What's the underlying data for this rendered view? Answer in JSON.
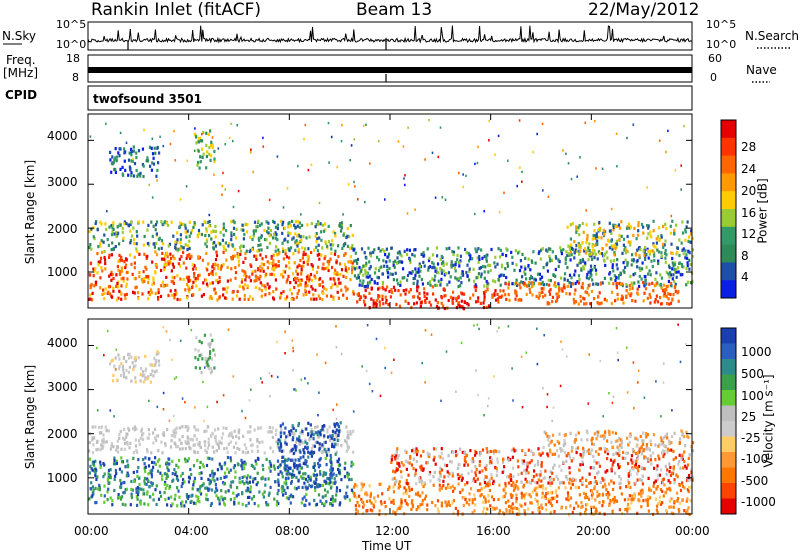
{
  "header": {
    "station": "Rankin Inlet (fitACF)",
    "beam": "Beam 13",
    "date": "22/May/2012"
  },
  "summary": {
    "nsky_label": "N.Sky",
    "nsky_ticks": [
      "10^5",
      "10^0"
    ],
    "nsearch_label": "N.Search",
    "nsearch_ticks": [
      "10^5",
      "10^0"
    ],
    "freq_label": "Freq.",
    "freq_unit": "[MHz]",
    "freq_ticks": [
      "18",
      "8"
    ],
    "nave_label": "Nave",
    "nave_ticks": [
      "60",
      "0"
    ],
    "cpid_label": "CPID",
    "cpid_value": "twofsound 3501"
  },
  "chart_data": [
    {
      "type": "heatmap",
      "parameter": "power",
      "ylabel": "Slant Range [km]",
      "xlabel": "Time UT",
      "x_ticks": [
        "00:00",
        "04:00",
        "08:00",
        "12:00",
        "16:00",
        "20:00",
        "00:00"
      ],
      "x_range_hours": [
        0,
        24
      ],
      "y_ticks": [
        1000,
        2000,
        3000,
        4000
      ],
      "y_range_km": [
        180,
        4600
      ],
      "colorbar_label": "Power [dB]",
      "colorbar_ticks": [
        "28",
        "24",
        "20",
        "16",
        "12",
        "8",
        "4"
      ],
      "colors": [
        "#e60000",
        "#ff3300",
        "#ff6600",
        "#ff9900",
        "#ffcc00",
        "#99cc33",
        "#339966",
        "#2e8b57",
        "#1f4fa8",
        "#0a1fe6"
      ]
    },
    {
      "type": "heatmap",
      "parameter": "velocity",
      "ylabel": "Slant Range [km]",
      "xlabel": "Time UT",
      "x_ticks": [
        "00:00",
        "04:00",
        "08:00",
        "12:00",
        "16:00",
        "20:00",
        "00:00"
      ],
      "x_range_hours": [
        0,
        24
      ],
      "y_ticks": [
        1000,
        2000,
        3000,
        4000
      ],
      "y_range_km": [
        180,
        4600
      ],
      "colorbar_label": "Velocity [m s⁻¹]",
      "colorbar_ticks": [
        "1000",
        "500",
        "100",
        "25",
        "-25",
        "-100",
        "-500",
        "-1000"
      ],
      "colors": [
        "#1a3fb0",
        "#2a5fc0",
        "#2e8b8b",
        "#3aa04a",
        "#66cc33",
        "#bfbfbf",
        "#cccccc",
        "#ffcc66",
        "#ff9933",
        "#ff7700",
        "#ff4400",
        "#e60000"
      ]
    }
  ]
}
